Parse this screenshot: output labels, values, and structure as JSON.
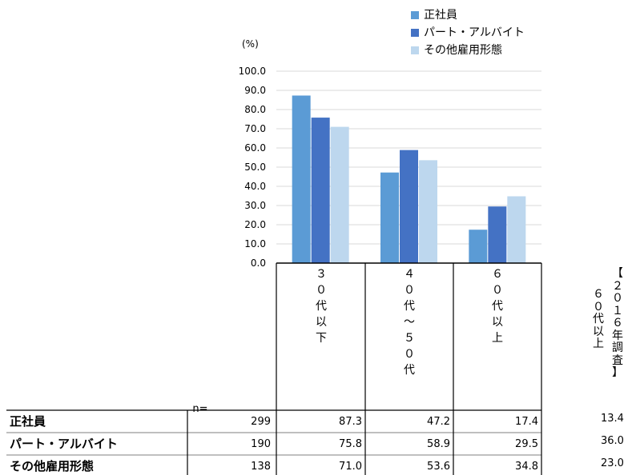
{
  "chart_data": {
    "type": "bar",
    "unit_label": "(%)",
    "ylim": [
      0,
      100
    ],
    "yticks": [
      "0.0",
      "10.0",
      "20.0",
      "30.0",
      "40.0",
      "50.0",
      "60.0",
      "70.0",
      "80.0",
      "90.0",
      "100.0"
    ],
    "grid": true,
    "legend_position": "top-right",
    "categories": [
      "３０代以下",
      "４０代～５０代",
      "６０代以上"
    ],
    "category_labels": [
      [
        "３",
        "０",
        "代",
        "以",
        "下"
      ],
      [
        "４",
        "０",
        "代",
        "～",
        "５",
        "０",
        "代"
      ],
      [
        "６",
        "０",
        "代",
        "以",
        "上"
      ]
    ],
    "series": [
      {
        "name": "正社員",
        "values": [
          87.3,
          47.2,
          17.4
        ],
        "color": "#5b9bd5"
      },
      {
        "name": "パート・アルバイト",
        "values": [
          75.8,
          58.9,
          29.5
        ],
        "color": "#4472c4"
      },
      {
        "name": "その他雇用形態",
        "values": [
          71.0,
          53.6,
          34.8
        ],
        "color": "#bdd7ee"
      }
    ]
  },
  "table": {
    "n_header": "n=",
    "rows": [
      {
        "label": "正社員",
        "n": "299",
        "values": [
          "87.3",
          "47.2",
          "17.4"
        ],
        "survey_2016": "13.4"
      },
      {
        "label": "パート・アルバイト",
        "n": "190",
        "values": [
          "75.8",
          "58.9",
          "29.5"
        ],
        "survey_2016": "36.0"
      },
      {
        "label": "その他雇用形態",
        "n": "138",
        "values": [
          "71.0",
          "53.6",
          "34.8"
        ],
        "survey_2016": "23.0"
      }
    ]
  },
  "side_label": {
    "col1": [
      "【",
      "２",
      "０",
      "１",
      "６",
      "年",
      "調",
      "査",
      "】"
    ],
    "col2": [
      "６",
      "０",
      "代",
      "以",
      "上"
    ]
  }
}
